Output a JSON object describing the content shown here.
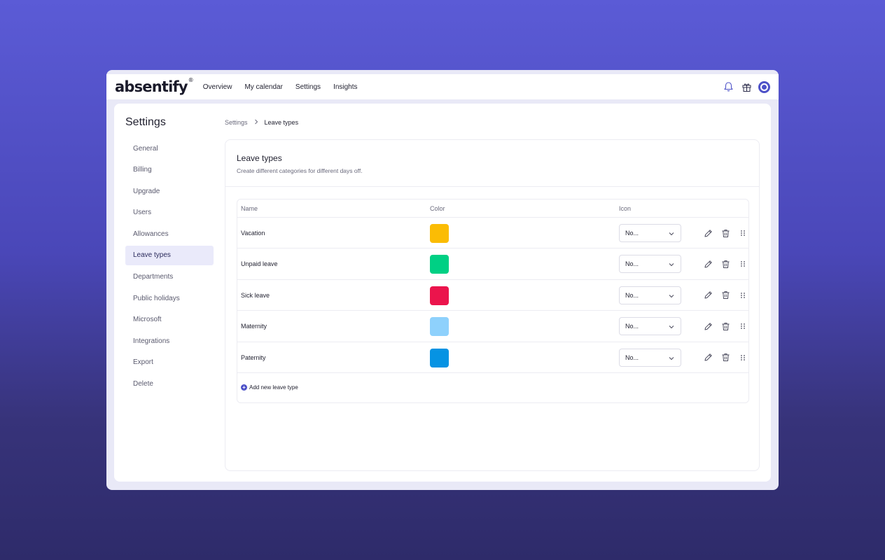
{
  "app": {
    "logo": "absentify",
    "logo_mark": "®"
  },
  "nav": {
    "items": [
      "Overview",
      "My calendar",
      "Settings",
      "Insights"
    ]
  },
  "top_icons": {
    "bell": "bell-icon",
    "gift": "gift-icon",
    "avatar": "avatar-icon",
    "accent": "#4e52c8"
  },
  "sidebar": {
    "title": "Settings",
    "items": [
      "General",
      "Billing",
      "Upgrade",
      "Users",
      "Allowances",
      "Leave types",
      "Departments",
      "Public holidays",
      "Microsoft",
      "Integrations",
      "Export",
      "Delete"
    ],
    "active": "Leave types"
  },
  "breadcrumb": {
    "parent": "Settings",
    "separator": ">",
    "current": "Leave types"
  },
  "panel": {
    "title": "Leave types",
    "subtitle": "Create different categories for different days off."
  },
  "table": {
    "headers": {
      "name": "Name",
      "color": "Color",
      "icon": "Icon"
    },
    "rows": [
      {
        "name": "Vacation",
        "color": "#fbbc04",
        "icon": "No..."
      },
      {
        "name": "Unpaid leave",
        "color": "#00d084",
        "icon": "No..."
      },
      {
        "name": "Sick leave",
        "color": "#eb144c",
        "icon": "No..."
      },
      {
        "name": "Maternity",
        "color": "#8ed1fc",
        "icon": "No..."
      },
      {
        "name": "Paternity",
        "color": "#0693e3",
        "icon": "No..."
      }
    ],
    "add_label": "Add new leave type"
  }
}
